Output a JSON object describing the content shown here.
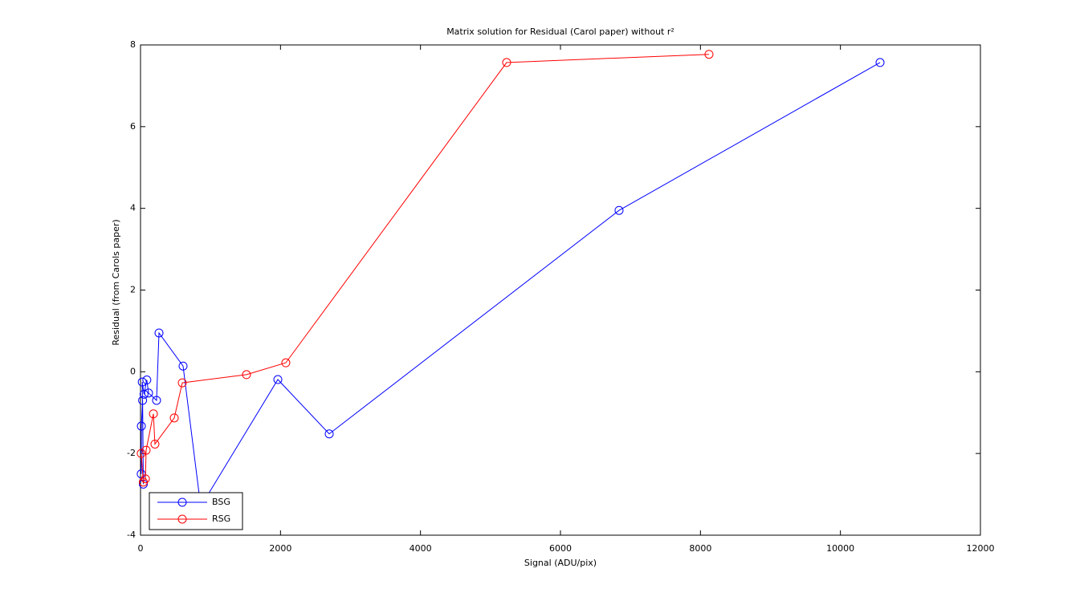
{
  "chart_data": {
    "type": "line",
    "title": "Matrix solution for Residual (Carol paper) without r²",
    "x_label": "Signal (ADU/pix)",
    "y_label": "Residual (from Carols paper)",
    "series": [
      {
        "name": "BSG",
        "color": "#0000ff",
        "x": [
          10,
          12,
          30,
          40,
          25,
          50,
          90,
          115,
          229,
          264,
          608,
          860,
          1962,
          2696,
          6837,
          10566
        ],
        "values": [
          -2.5,
          -1.33,
          -0.7,
          -2.75,
          -0.25,
          -0.55,
          -0.2,
          -0.52,
          -0.7,
          0.95,
          0.14,
          -3.3,
          -0.19,
          -1.52,
          3.95,
          7.57
        ]
      },
      {
        "name": "RSG",
        "color": "#ff0000",
        "x": [
          10,
          40,
          70,
          80,
          184,
          206,
          482,
          597,
          1514,
          2076,
          5231,
          8122
        ],
        "values": [
          -2.0,
          -2.7,
          -2.62,
          -1.92,
          -1.03,
          -1.77,
          -1.13,
          -0.27,
          -0.07,
          0.22,
          7.57,
          7.77
        ]
      }
    ],
    "xlim": [
      0,
      12000
    ],
    "xticks": [
      0,
      2000,
      4000,
      6000,
      8000,
      10000,
      12000
    ],
    "ylim": [
      -4,
      8
    ],
    "yticks": [
      -4,
      -2,
      0,
      2,
      4,
      6,
      8
    ],
    "legend": "lower left"
  }
}
